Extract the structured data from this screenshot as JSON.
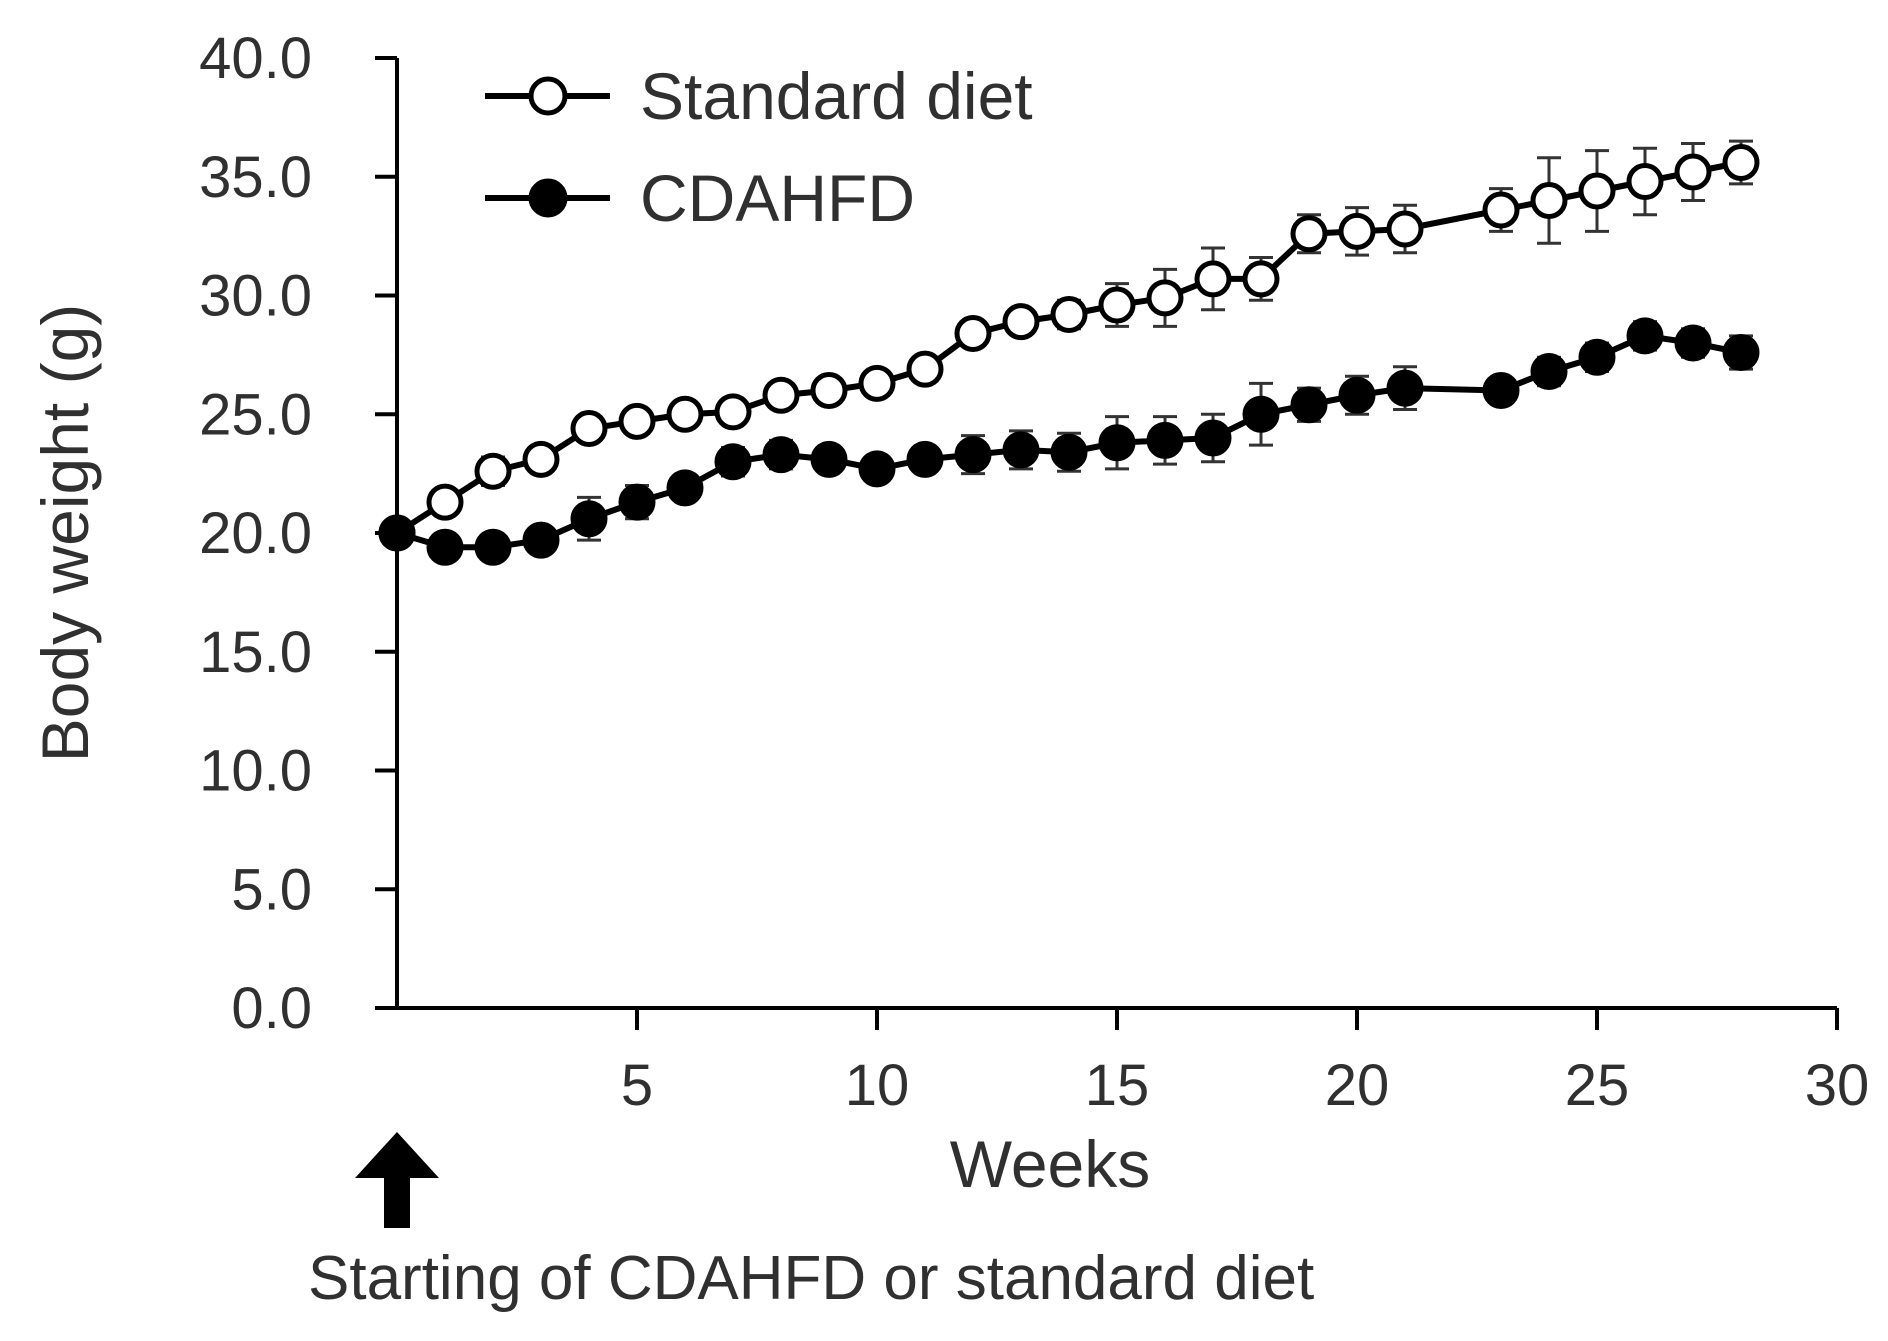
{
  "chart_data": {
    "type": "line",
    "title": "",
    "xlabel": "Weeks",
    "ylabel": "Body weight (g)",
    "xlim": [
      0,
      30
    ],
    "ylim": [
      0,
      40
    ],
    "x_ticks": [
      5,
      10,
      15,
      20,
      25,
      30
    ],
    "x_tick_labels": [
      "5",
      "10",
      "15",
      "20",
      "25",
      "30"
    ],
    "y_ticks": [
      0,
      5,
      10,
      15,
      20,
      25,
      30,
      35,
      40
    ],
    "y_tick_labels": [
      "0.0",
      "5.0",
      "10.0",
      "15.0",
      "20.0",
      "25.0",
      "30.0",
      "35.0",
      "40.0"
    ],
    "grid": false,
    "legend_position": "top-left",
    "annotation": {
      "text": "Starting of CDAHFD or standard diet",
      "arrow_at_x": 0
    },
    "series": [
      {
        "name": "Standard diet",
        "marker": "open-circle",
        "color": "#000000",
        "x": [
          0,
          1,
          2,
          3,
          4,
          5,
          6,
          7,
          8,
          9,
          10,
          11,
          12,
          13,
          14,
          15,
          16,
          17,
          18,
          19,
          20,
          21,
          23,
          24,
          25,
          26,
          27,
          28
        ],
        "values": [
          20.0,
          21.3,
          22.6,
          23.1,
          24.4,
          24.7,
          25.0,
          25.1,
          25.8,
          26.0,
          26.3,
          26.9,
          28.4,
          28.9,
          29.2,
          29.6,
          29.9,
          30.7,
          30.7,
          32.6,
          32.7,
          32.8,
          33.6,
          34.0,
          34.4,
          34.8,
          35.2,
          35.6
        ],
        "error": [
          0.3,
          0.4,
          0.6,
          0.5,
          0.5,
          0.4,
          0.4,
          0.4,
          0.5,
          0.5,
          0.5,
          0.5,
          0.5,
          0.5,
          0.6,
          0.9,
          1.2,
          1.3,
          0.9,
          0.8,
          1.0,
          1.0,
          0.9,
          1.8,
          1.7,
          1.4,
          1.2,
          0.9
        ]
      },
      {
        "name": "CDAHFD",
        "marker": "filled-circle",
        "color": "#000000",
        "x": [
          0,
          1,
          2,
          3,
          4,
          5,
          6,
          7,
          8,
          9,
          10,
          11,
          12,
          13,
          14,
          15,
          16,
          17,
          18,
          19,
          20,
          21,
          23,
          24,
          25,
          26,
          27,
          28
        ],
        "values": [
          20.0,
          19.4,
          19.4,
          19.7,
          20.6,
          21.3,
          21.9,
          23.0,
          23.3,
          23.1,
          22.7,
          23.1,
          23.3,
          23.5,
          23.4,
          23.8,
          23.9,
          24.0,
          25.0,
          25.4,
          25.8,
          26.1,
          26.0,
          26.8,
          27.4,
          28.3,
          28.0,
          27.6
        ],
        "error": [
          0.3,
          0.4,
          0.3,
          0.3,
          0.9,
          0.7,
          0.5,
          0.6,
          0.6,
          0.5,
          0.5,
          0.5,
          0.8,
          0.8,
          0.8,
          1.1,
          1.0,
          1.0,
          1.3,
          0.7,
          0.8,
          0.9,
          0.5,
          0.6,
          0.6,
          0.6,
          0.6,
          0.7
        ]
      }
    ]
  }
}
